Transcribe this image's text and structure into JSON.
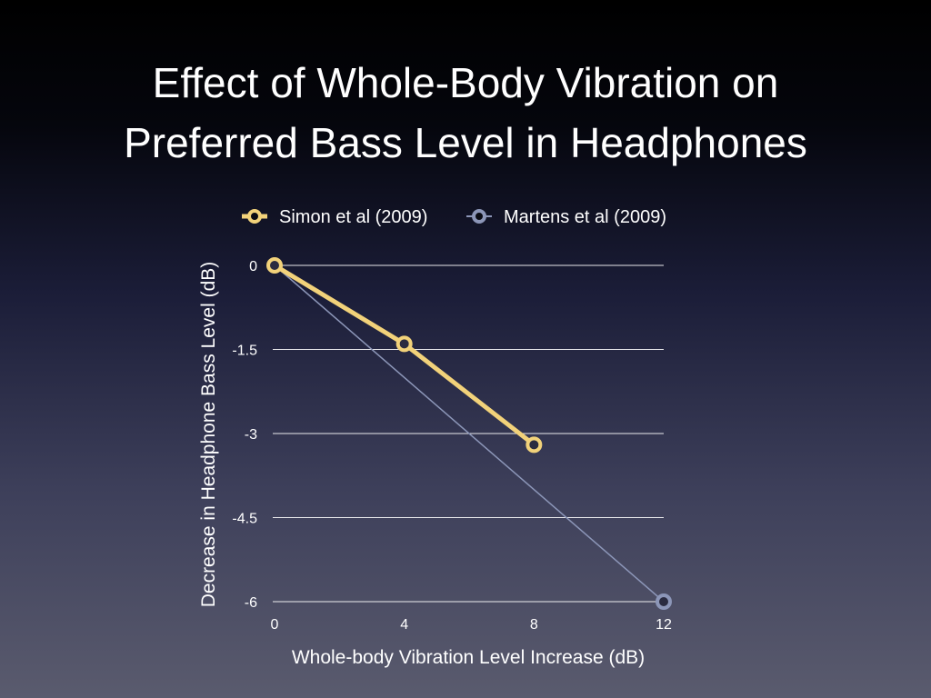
{
  "slide": {
    "title_line1": "Effect of Whole-Body Vibration on",
    "title_line2": "Preferred Bass Level in Headphones"
  },
  "chart_data": {
    "type": "line",
    "title": "Effect of Whole-Body Vibration on Preferred Bass Level in Headphones",
    "xlabel": "Whole-body  Vibration Level Increase (dB)",
    "ylabel": "Decrease in Headphone Bass Level (dB)",
    "x_ticks": [
      0,
      4,
      8,
      12
    ],
    "y_ticks": [
      0,
      -1.5,
      -3,
      -4.5,
      -6
    ],
    "x_tick_labels": [
      "0",
      "4",
      "8",
      "12"
    ],
    "y_tick_labels": [
      "0",
      "-1.5",
      "-3",
      "-4.5",
      "-6"
    ],
    "xlim": [
      0,
      12
    ],
    "ylim": [
      -6,
      0
    ],
    "grid": true,
    "legend_position": "top",
    "series": [
      {
        "name": "Simon et al (2009)",
        "color": "#f2d27a",
        "x": [
          0,
          4,
          8
        ],
        "y": [
          0,
          -1.4,
          -3.2
        ]
      },
      {
        "name": "Martens et al (2009)",
        "color": "#8c96b8",
        "x": [
          0,
          12
        ],
        "y": [
          0,
          -6
        ]
      }
    ]
  }
}
